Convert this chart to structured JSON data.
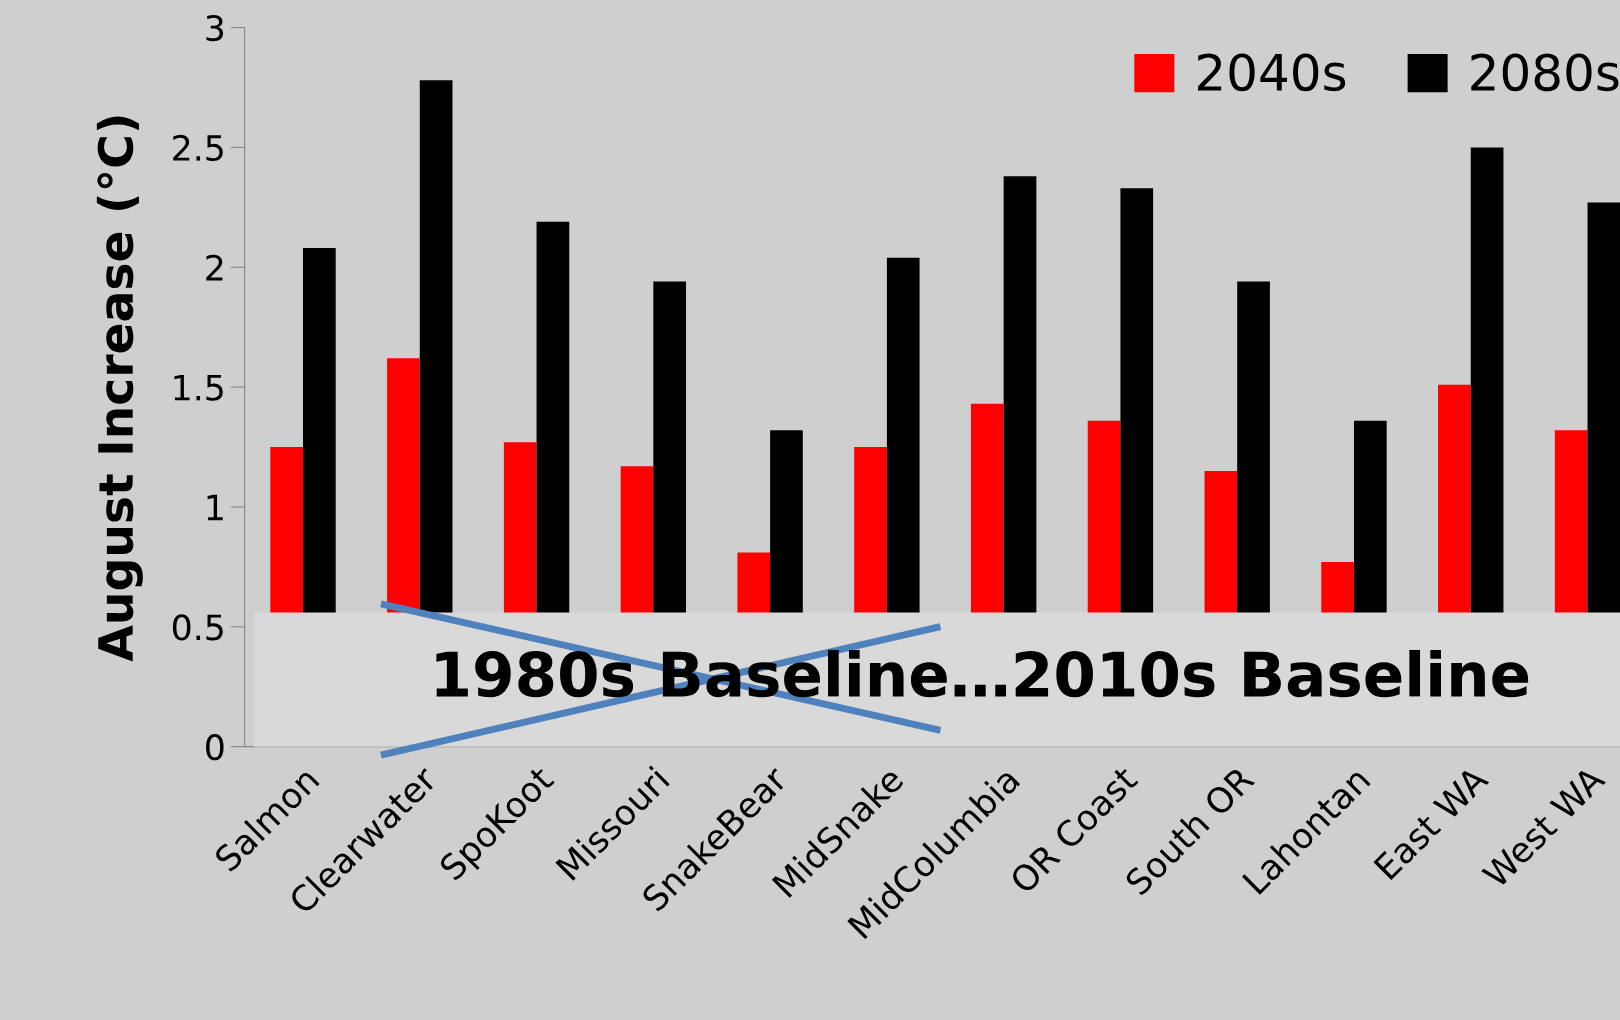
{
  "chart_data": {
    "type": "bar",
    "ylabel": "August Increase (°C)",
    "categories": [
      "Salmon",
      "Clearwater",
      "SpoKoot",
      "Missouri",
      "SnakeBear",
      "MidSnake",
      "MidColumbia",
      "OR Coast",
      "South OR",
      "Lahontan",
      "East WA",
      "West WA"
    ],
    "series": [
      {
        "name": "2040s",
        "color": "#ff0000",
        "values": [
          1.25,
          1.62,
          1.27,
          1.17,
          0.81,
          1.25,
          1.43,
          1.36,
          1.15,
          0.77,
          1.51,
          1.32
        ]
      },
      {
        "name": "2080s",
        "color": "#000000",
        "values": [
          2.08,
          2.78,
          2.19,
          1.94,
          1.32,
          2.04,
          2.38,
          2.33,
          1.94,
          1.36,
          2.5,
          2.27
        ]
      }
    ],
    "ylim": [
      0,
      3
    ],
    "yticks": [
      0,
      0.5,
      1,
      1.5,
      2,
      2.5,
      3
    ],
    "bands": [
      {
        "axis": "y",
        "from": 0,
        "to": 0.56,
        "label": "1980s Baseline…2010s Baseline",
        "color": "#d9d9d9"
      }
    ],
    "grid": false,
    "legend": "top right"
  }
}
